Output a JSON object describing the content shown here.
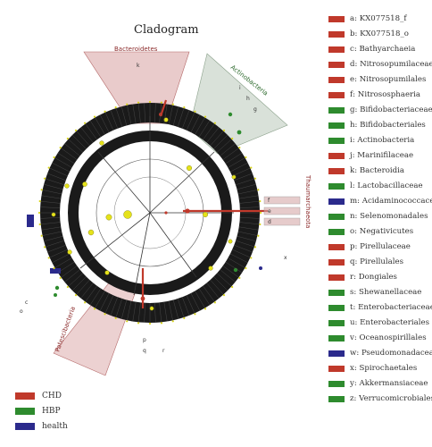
{
  "title": "Cladogram",
  "colors": {
    "CHD": "#c0392b",
    "HBP": "#2e8b2e",
    "health": "#2b2a8c"
  },
  "legend": [
    {
      "letter": "a",
      "name": "KX077518_f",
      "group": "CHD"
    },
    {
      "letter": "b",
      "name": "KX077518_o",
      "group": "CHD"
    },
    {
      "letter": "c",
      "name": "Bathyarchaeia",
      "group": "CHD"
    },
    {
      "letter": "d",
      "name": "Nitrosopumilaceae",
      "group": "CHD"
    },
    {
      "letter": "e",
      "name": "Nitrosopumilales",
      "group": "CHD"
    },
    {
      "letter": "f",
      "name": "Nitrososphaeria",
      "group": "CHD"
    },
    {
      "letter": "g",
      "name": "Bifidobacteriaceae",
      "group": "HBP"
    },
    {
      "letter": "h",
      "name": "Bifidobacteriales",
      "group": "HBP"
    },
    {
      "letter": "i",
      "name": "Actinobacteria",
      "group": "HBP"
    },
    {
      "letter": "j",
      "name": "Marinifilaceae",
      "group": "CHD"
    },
    {
      "letter": "k",
      "name": "Bacteroidia",
      "group": "CHD"
    },
    {
      "letter": "l",
      "name": "Lactobacillaceae",
      "group": "HBP"
    },
    {
      "letter": "m",
      "name": "Acidaminococcaceae",
      "group": "health"
    },
    {
      "letter": "n",
      "name": "Selenomonadales",
      "group": "HBP"
    },
    {
      "letter": "o",
      "name": "Negativicutes",
      "group": "HBP"
    },
    {
      "letter": "p",
      "name": "Pirellulaceae",
      "group": "CHD"
    },
    {
      "letter": "q",
      "name": "Pirellulales",
      "group": "CHD"
    },
    {
      "letter": "r",
      "name": "Dongiales",
      "group": "CHD"
    },
    {
      "letter": "s",
      "name": "Shewanellaceae",
      "group": "HBP"
    },
    {
      "letter": "t",
      "name": "Enterobacteriaceae",
      "group": "HBP"
    },
    {
      "letter": "u",
      "name": "Enterobacteriales",
      "group": "HBP"
    },
    {
      "letter": "v",
      "name": "Oceanospirillales",
      "group": "HBP"
    },
    {
      "letter": "w",
      "name": "Pseudomonadaceae",
      "group": "health"
    },
    {
      "letter": "x",
      "name": "Spirochaetales",
      "group": "CHD"
    },
    {
      "letter": "y",
      "name": "Akkermansiaceae",
      "group": "HBP"
    },
    {
      "letter": "z",
      "name": "Verrucomicrobiales",
      "group": "HBP"
    }
  ],
  "group_legend": [
    {
      "name": "CHD",
      "group": "CHD"
    },
    {
      "name": "HBP",
      "group": "HBP"
    },
    {
      "name": "health",
      "group": "health"
    }
  ],
  "phylum_labels": {
    "bacteroidetes": "Bacteroidetes",
    "actinobacteria": "Actinobacteria",
    "thaumarchaeota": "Thaumarchaeota",
    "patescibacteria": "Patescibacteria"
  }
}
